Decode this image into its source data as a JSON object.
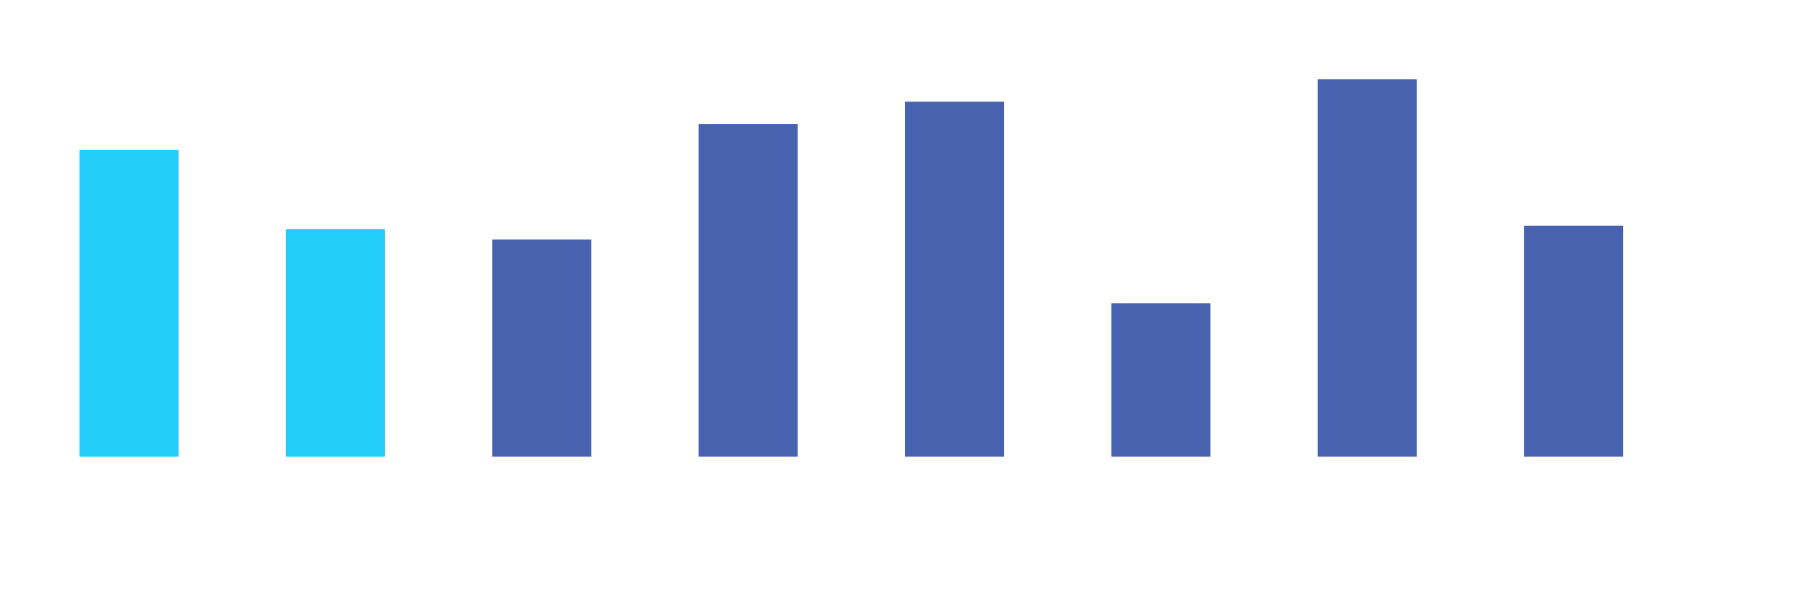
{
  "chart_data": {
    "type": "bar",
    "values": [
      178,
      132,
      126,
      193,
      206,
      89,
      219,
      134
    ],
    "colors": [
      "#22cdf9",
      "#22cdf9",
      "#4762ae",
      "#4762ae",
      "#4762ae",
      "#4762ae",
      "#4762ae",
      "#4762ae"
    ],
    "ylim": [
      0,
      265
    ]
  }
}
